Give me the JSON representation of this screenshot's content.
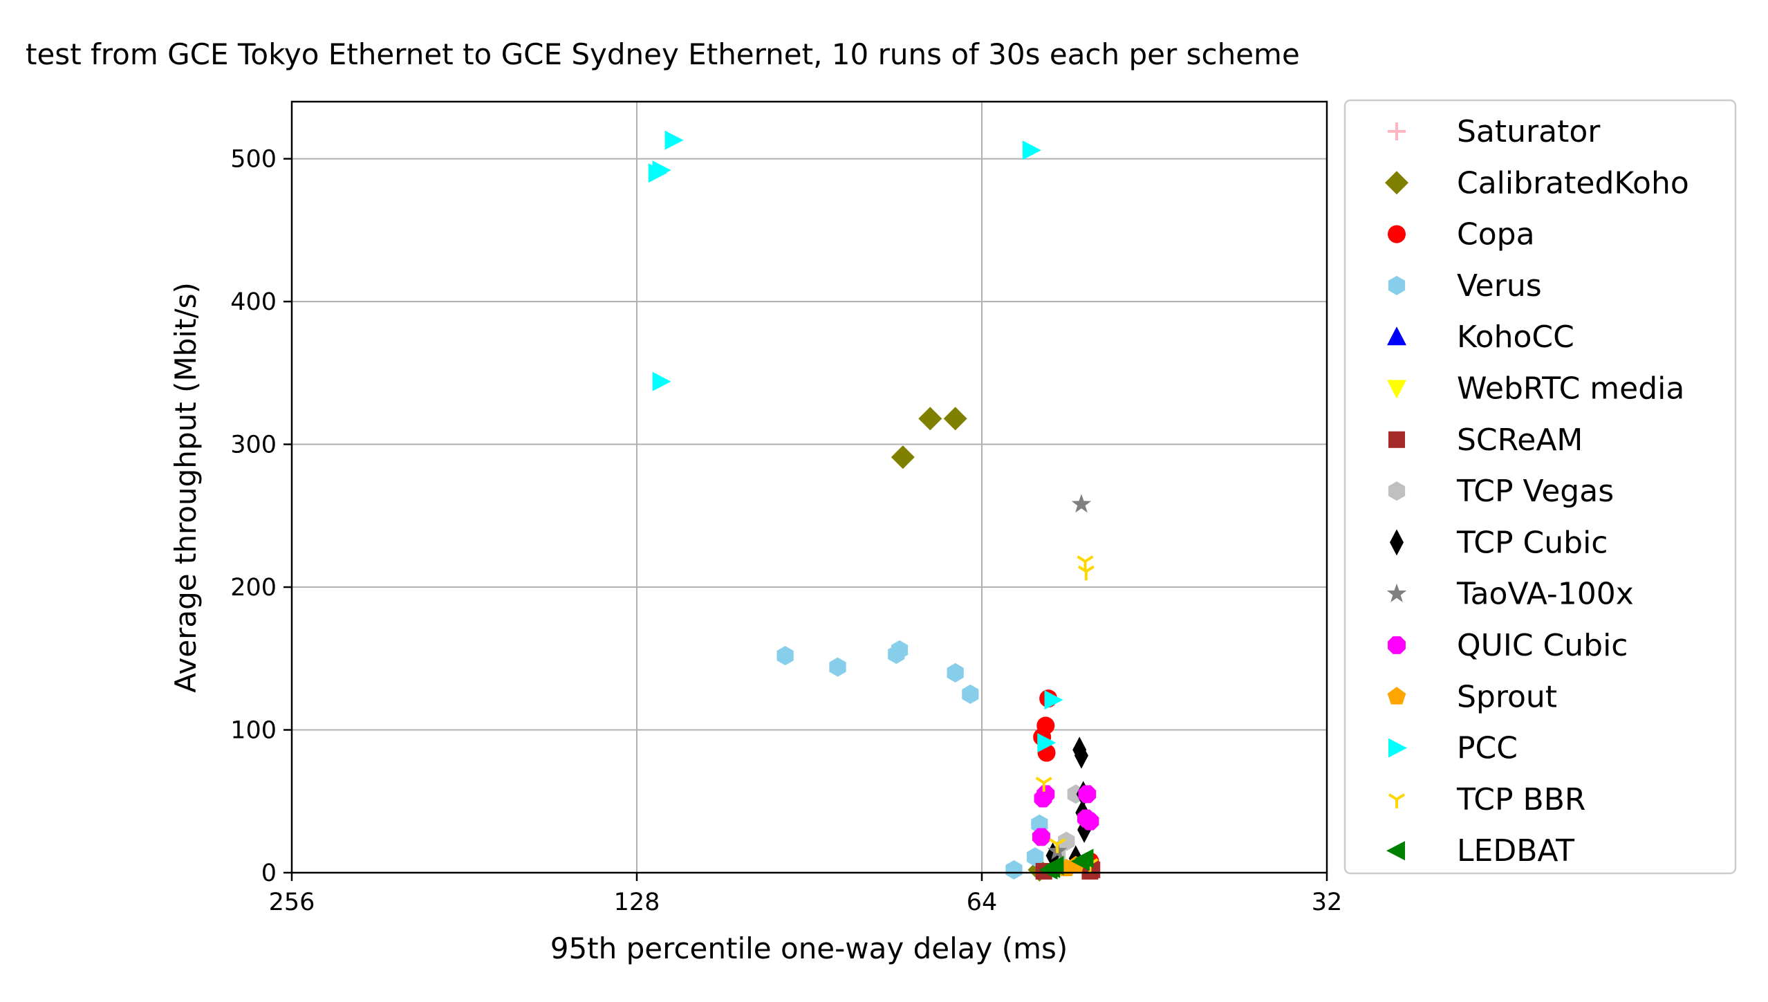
{
  "chart_data": {
    "type": "scatter",
    "title": "test from GCE Tokyo Ethernet to GCE Sydney Ethernet, 10 runs of 30s each per scheme",
    "xlabel": "95th percentile one-way delay (ms)",
    "ylabel": "Average throughput (Mbit/s)",
    "x_scale": "log2",
    "x_inverted": true,
    "xlim": [
      256,
      32
    ],
    "ylim": [
      0,
      540
    ],
    "xticks": [
      256,
      128,
      64,
      32
    ],
    "xtick_labels": [
      "256",
      "128",
      "64",
      "32"
    ],
    "yticks": [
      0,
      100,
      200,
      300,
      400,
      500
    ],
    "ytick_labels": [
      "0",
      "100",
      "200",
      "300",
      "400",
      "500"
    ],
    "grid": true,
    "legend_position": "outside-right",
    "series": [
      {
        "name": "Saturator",
        "marker": "plus",
        "color": "#ffb6c1",
        "points": []
      },
      {
        "name": "CalibratedKoho",
        "marker": "diamond",
        "color": "#808000",
        "points": [
          [
            75.0,
            291
          ],
          [
            71.0,
            318
          ],
          [
            67.5,
            318
          ],
          [
            57.0,
            2
          ]
        ]
      },
      {
        "name": "Copa",
        "marker": "circle",
        "color": "#ff0000",
        "points": [
          [
            56.0,
            122
          ],
          [
            56.3,
            103
          ],
          [
            56.7,
            95
          ],
          [
            56.2,
            84
          ],
          [
            51.5,
            8
          ]
        ]
      },
      {
        "name": "Verus",
        "marker": "hexagon",
        "color": "#87ceeb",
        "points": [
          [
            95.0,
            152
          ],
          [
            85.5,
            144
          ],
          [
            76.0,
            153
          ],
          [
            75.5,
            156
          ],
          [
            67.5,
            140
          ],
          [
            65.5,
            125
          ],
          [
            60.0,
            2
          ],
          [
            57.0,
            34
          ],
          [
            57.5,
            11
          ]
        ]
      },
      {
        "name": "KohoCC",
        "marker": "triangle-up",
        "color": "#0000ff",
        "points": []
      },
      {
        "name": "WebRTC media",
        "marker": "triangle-down",
        "color": "#ffff00",
        "points": []
      },
      {
        "name": "SCReAM",
        "marker": "square",
        "color": "#a52a2a",
        "points": [
          [
            56.5,
            1
          ],
          [
            51.5,
            1
          ],
          [
            51.3,
            2
          ]
        ]
      },
      {
        "name": "TCP Vegas",
        "marker": "hexagon",
        "color": "#c0c0c0",
        "points": [
          [
            53.0,
            55
          ],
          [
            54.0,
            22
          ],
          [
            55.0,
            12
          ]
        ]
      },
      {
        "name": "TCP Cubic",
        "marker": "thin-diamond",
        "color": "#000000",
        "points": [
          [
            52.6,
            86
          ],
          [
            52.4,
            82
          ],
          [
            52.2,
            55
          ],
          [
            52.3,
            42
          ],
          [
            52.1,
            30
          ],
          [
            55.5,
            12
          ],
          [
            53.0,
            10
          ]
        ]
      },
      {
        "name": "TaoVA-100x",
        "marker": "star",
        "color": "#808080",
        "points": [
          [
            52.4,
            258
          ],
          [
            55.0,
            15
          ]
        ]
      },
      {
        "name": "QUIC Cubic",
        "marker": "octagon",
        "color": "#ff00ff",
        "points": [
          [
            56.3,
            55
          ],
          [
            56.6,
            52
          ],
          [
            51.8,
            55
          ],
          [
            51.9,
            38
          ],
          [
            51.5,
            36
          ],
          [
            56.8,
            25
          ]
        ]
      },
      {
        "name": "Sprout",
        "marker": "pentagon",
        "color": "#ffa500",
        "points": [
          [
            54.0,
            3
          ],
          [
            53.0,
            5
          ]
        ]
      },
      {
        "name": "PCC",
        "marker": "triangle-right",
        "color": "#00ffff",
        "points": [
          [
            119.0,
            513
          ],
          [
            123.0,
            490
          ],
          [
            122.0,
            492
          ],
          [
            122.0,
            344
          ],
          [
            58.0,
            506
          ],
          [
            55.5,
            121
          ],
          [
            56.3,
            91
          ]
        ]
      },
      {
        "name": "TCP BBR",
        "marker": "tri-down",
        "color": "#ffd700",
        "points": [
          [
            52.0,
            218
          ],
          [
            51.9,
            211
          ],
          [
            56.5,
            63
          ],
          [
            55.0,
            20
          ],
          [
            51.5,
            6
          ]
        ]
      },
      {
        "name": "LEDBAT",
        "marker": "triangle-left",
        "color": "#008000",
        "points": [
          [
            55.6,
            3
          ],
          [
            55.2,
            5
          ],
          [
            55.9,
            2
          ],
          [
            52.4,
            8
          ],
          [
            52.0,
            10
          ]
        ]
      }
    ]
  }
}
